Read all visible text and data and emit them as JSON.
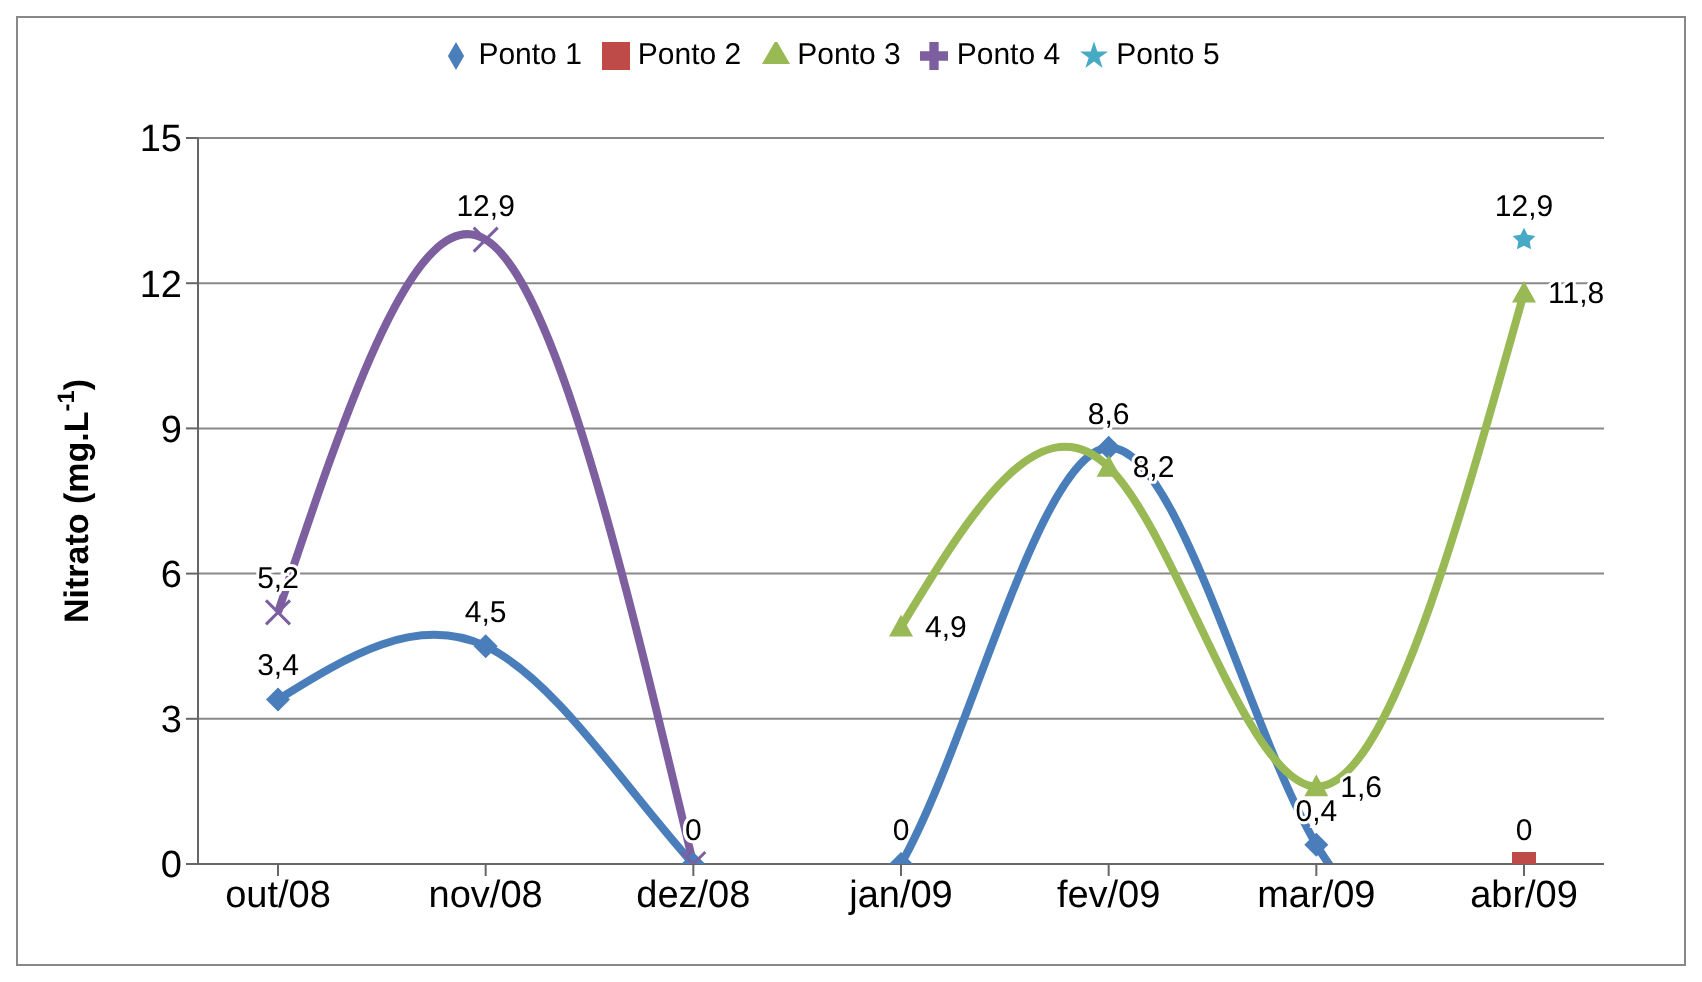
{
  "chart_data": {
    "type": "line",
    "ylabel": "Nitrato (mg.L$^{-1}$)",
    "categories": [
      "out/08",
      "nov/08",
      "dez/08",
      "jan/09",
      "fev/09",
      "mar/09",
      "abr/09"
    ],
    "series": [
      {
        "name": "Ponto 1",
        "color": "#4a7ebb",
        "marker": "diamond",
        "values": [
          3.4,
          4.5,
          0,
          0,
          8.6,
          0.4,
          0
        ],
        "value_labels": [
          "3,4",
          "4,5",
          "0",
          "0",
          "8,6",
          "0,4",
          "0"
        ]
      },
      {
        "name": "Ponto 2",
        "color": "#be4b48",
        "marker": "square",
        "values": [
          null,
          null,
          null,
          null,
          null,
          null,
          0
        ],
        "value_labels": [
          null,
          null,
          null,
          null,
          null,
          null,
          null
        ]
      },
      {
        "name": "Ponto 3",
        "color": "#98b954",
        "marker": "triangle",
        "values": [
          null,
          null,
          null,
          4.9,
          8.2,
          1.6,
          11.8
        ],
        "value_labels": [
          null,
          null,
          null,
          "4,9",
          "8,2",
          "1,6",
          "11,8"
        ]
      },
      {
        "name": "Ponto 4",
        "color": "#7d5fa0",
        "marker": "cross",
        "values": [
          5.2,
          12.9,
          0,
          null,
          null,
          null,
          null
        ],
        "value_labels": [
          "5,2",
          "12,9",
          "0",
          null,
          null,
          null,
          null
        ]
      },
      {
        "name": "Ponto 5",
        "color": "#46aac5",
        "marker": "star",
        "values": [
          null,
          null,
          null,
          null,
          null,
          null,
          12.9
        ],
        "value_labels": [
          null,
          null,
          null,
          null,
          null,
          null,
          "12,9"
        ]
      }
    ],
    "ylim": [
      0,
      15
    ],
    "yticks": [
      0,
      3,
      6,
      9,
      12,
      15
    ],
    "grid": "y",
    "legend": "top"
  }
}
